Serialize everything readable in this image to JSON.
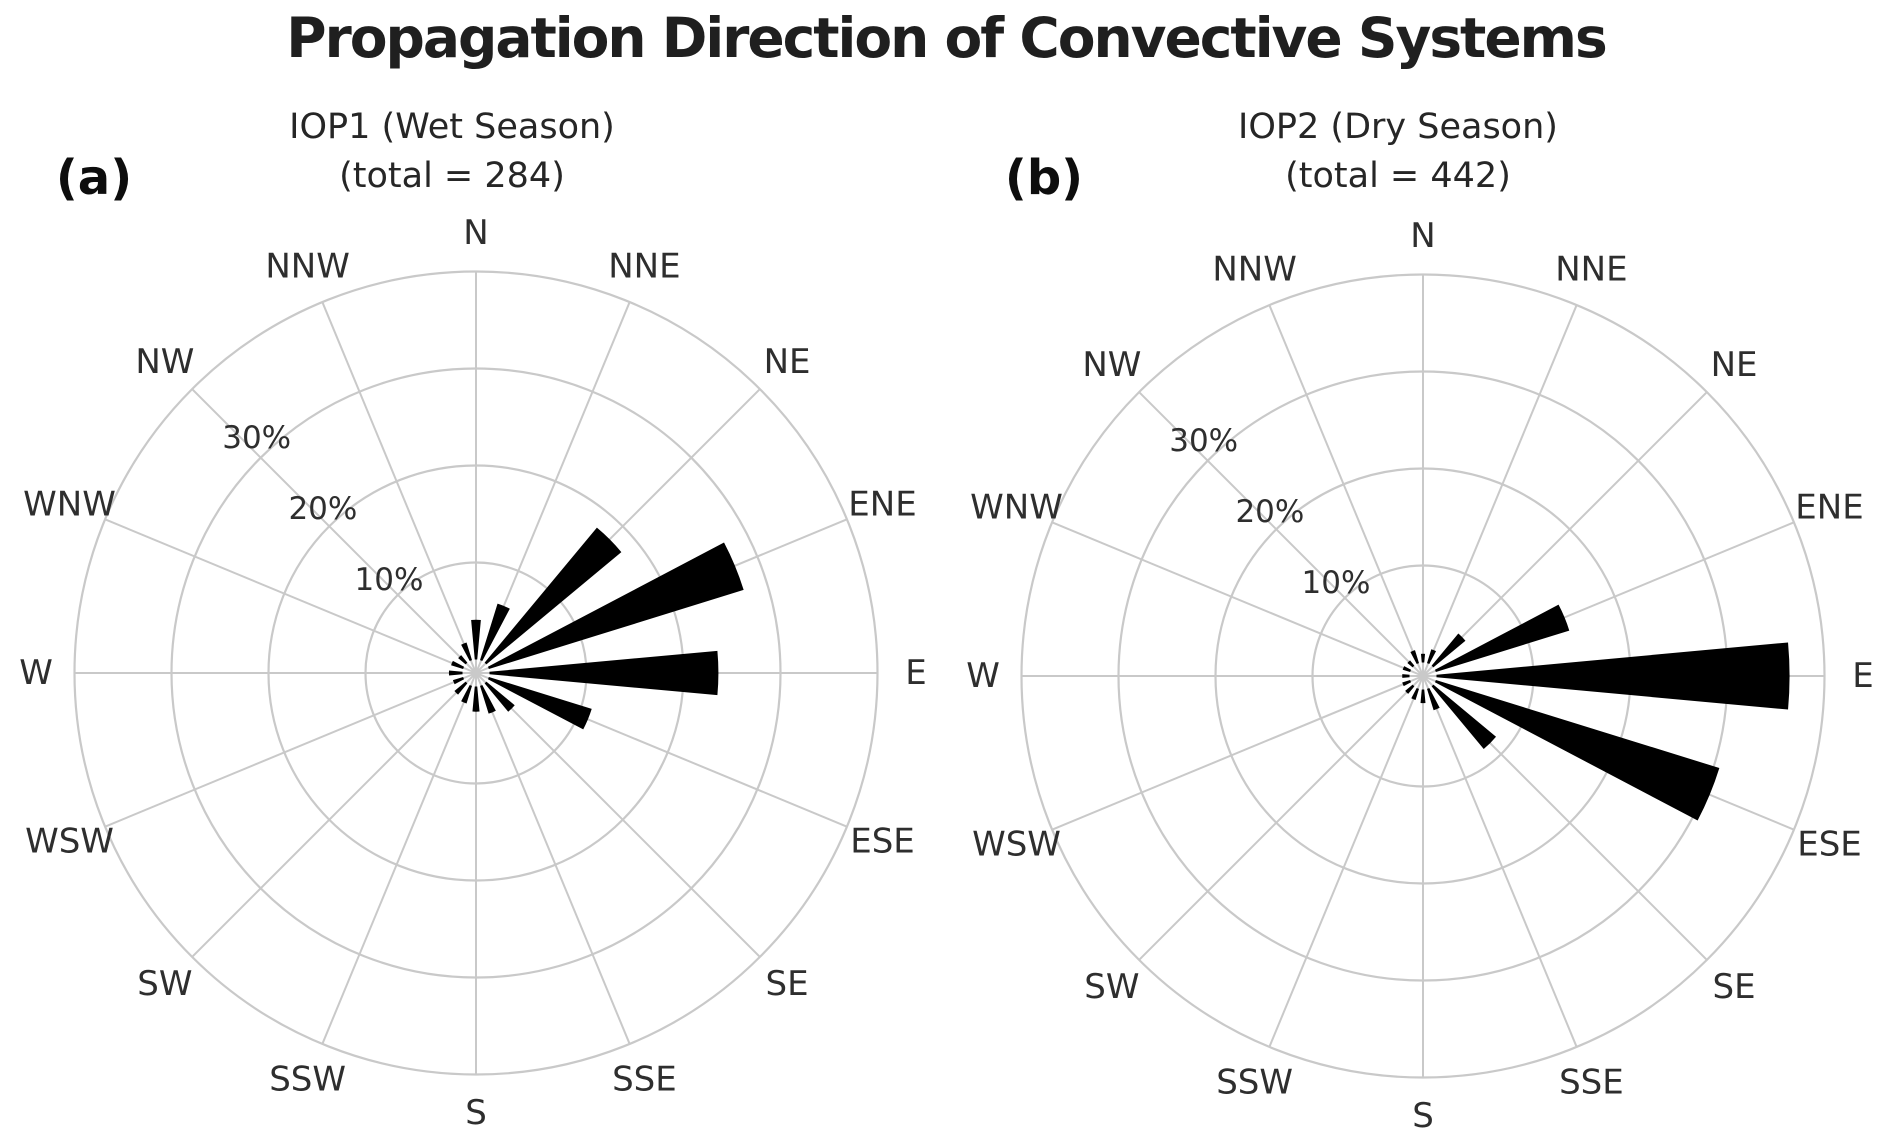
{
  "page": {
    "title": "Propagation Direction of Convective Systems"
  },
  "colors": {
    "bar_fill": "#000000",
    "grid_line": "#c9c9c9",
    "label_text": "#2e2e2e",
    "title_text": "#1f1f1f",
    "background": "#ffffff"
  },
  "radial_axis": {
    "tick_labels": [
      "10%",
      "20%",
      "30%"
    ],
    "tick_values": [
      10,
      20,
      30
    ],
    "outer_value": 40,
    "rlim": [
      0,
      40
    ]
  },
  "chart_data": [
    {
      "type": "bar",
      "polar": true,
      "panel_label": "(a)",
      "title": "IOP1 (Wet Season)",
      "subtitle": "(total = 284)",
      "total": 284,
      "categories": [
        "N",
        "NNE",
        "NE",
        "ENE",
        "E",
        "ESE",
        "SE",
        "SSE",
        "S",
        "SSW",
        "SW",
        "WSW",
        "W",
        "WNW",
        "NW",
        "NNW"
      ],
      "values": [
        4.1,
        6.1,
        18.1,
        27.5,
        23.6,
        11.1,
        3.8,
        3.0,
        2.6,
        1.9,
        1.5,
        1.1,
        1.4,
        1.3,
        1.0,
        1.9
      ],
      "unit": "percent",
      "ylim": [
        0,
        40
      ],
      "grid": true,
      "legend": false
    },
    {
      "type": "bar",
      "polar": true,
      "panel_label": "(b)",
      "title": "IOP2 (Dry Season)",
      "subtitle": "(total = 442)",
      "total": 442,
      "categories": [
        "N",
        "NNE",
        "NE",
        "ENE",
        "E",
        "ESE",
        "SE",
        "SSE",
        "S",
        "SSW",
        "SW",
        "WSW",
        "W",
        "WNW",
        "NW",
        "NNW"
      ],
      "values": [
        0.9,
        1.5,
        4.3,
        14.4,
        36.4,
        30.6,
        8.4,
        2.3,
        1.4,
        1.2,
        1.0,
        0.85,
        0.75,
        0.8,
        0.7,
        1.4
      ],
      "unit": "percent",
      "ylim": [
        0,
        40
      ],
      "grid": true,
      "legend": false
    }
  ]
}
